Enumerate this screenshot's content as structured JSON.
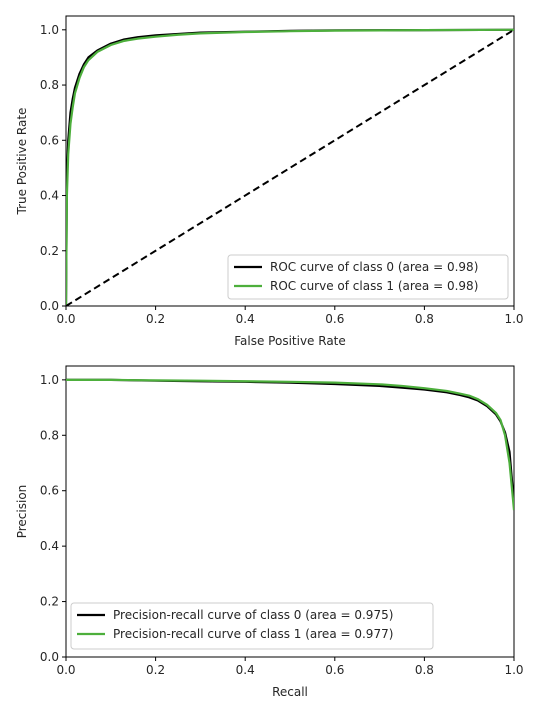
{
  "chart_data": [
    {
      "type": "line",
      "title": "",
      "xlabel": "False Positive Rate",
      "ylabel": "True Positive Rate",
      "xlim": [
        0,
        1
      ],
      "ylim": [
        0,
        1.05
      ],
      "xticks": [
        "0.0",
        "0.2",
        "0.4",
        "0.6",
        "0.8",
        "1.0"
      ],
      "yticks": [
        "0.0",
        "0.2",
        "0.4",
        "0.6",
        "0.8",
        "1.0"
      ],
      "grid": false,
      "legend_position": "lower-right",
      "series": [
        {
          "name": "ROC curve of class 0 (area = 0.98)",
          "color": "#000000",
          "x": [
            0,
            0.002,
            0.005,
            0.01,
            0.015,
            0.02,
            0.03,
            0.04,
            0.05,
            0.07,
            0.1,
            0.13,
            0.16,
            0.2,
            0.25,
            0.3,
            0.4,
            0.5,
            0.6,
            0.8,
            1.0
          ],
          "y": [
            0,
            0.45,
            0.6,
            0.7,
            0.75,
            0.79,
            0.84,
            0.875,
            0.9,
            0.925,
            0.95,
            0.965,
            0.973,
            0.98,
            0.985,
            0.99,
            0.993,
            0.996,
            0.998,
            0.999,
            1.0
          ]
        },
        {
          "name": "ROC curve of class 1 (area = 0.98)",
          "color": "#4daf3c",
          "x": [
            0,
            0.002,
            0.005,
            0.01,
            0.015,
            0.02,
            0.03,
            0.04,
            0.05,
            0.07,
            0.1,
            0.13,
            0.16,
            0.2,
            0.25,
            0.3,
            0.4,
            0.5,
            0.6,
            0.8,
            1.0
          ],
          "y": [
            0,
            0.4,
            0.55,
            0.66,
            0.72,
            0.77,
            0.825,
            0.865,
            0.89,
            0.92,
            0.945,
            0.96,
            0.968,
            0.975,
            0.982,
            0.987,
            0.992,
            0.995,
            0.997,
            0.999,
            1.0
          ]
        },
        {
          "name": "",
          "color": "#000000",
          "dashed": true,
          "x": [
            0,
            1
          ],
          "y": [
            0,
            1
          ]
        }
      ]
    },
    {
      "type": "line",
      "title": "",
      "xlabel": "Recall",
      "ylabel": "Precision",
      "xlim": [
        0,
        1
      ],
      "ylim": [
        0,
        1.05
      ],
      "xticks": [
        "0.0",
        "0.2",
        "0.4",
        "0.6",
        "0.8",
        "1.0"
      ],
      "yticks": [
        "0.0",
        "0.2",
        "0.4",
        "0.6",
        "0.8",
        "1.0"
      ],
      "grid": false,
      "legend_position": "lower-left",
      "series": [
        {
          "name": "Precision-recall curve of class 0 (area = 0.975)",
          "color": "#000000",
          "x": [
            0,
            0.1,
            0.2,
            0.3,
            0.4,
            0.5,
            0.6,
            0.7,
            0.75,
            0.8,
            0.85,
            0.88,
            0.9,
            0.92,
            0.94,
            0.96,
            0.97,
            0.98,
            0.99,
            1.0
          ],
          "y": [
            1.0,
            1.0,
            0.997,
            0.995,
            0.993,
            0.99,
            0.985,
            0.978,
            0.972,
            0.965,
            0.955,
            0.945,
            0.937,
            0.925,
            0.905,
            0.875,
            0.85,
            0.81,
            0.74,
            0.55
          ]
        },
        {
          "name": "Precision-recall curve of class 1 (area = 0.977)",
          "color": "#4daf3c",
          "x": [
            0,
            0.1,
            0.2,
            0.3,
            0.4,
            0.5,
            0.6,
            0.7,
            0.75,
            0.8,
            0.85,
            0.88,
            0.9,
            0.92,
            0.94,
            0.96,
            0.97,
            0.98,
            0.99,
            1.0
          ],
          "y": [
            1.0,
            1.0,
            0.998,
            0.997,
            0.995,
            0.993,
            0.99,
            0.984,
            0.978,
            0.97,
            0.96,
            0.95,
            0.943,
            0.93,
            0.91,
            0.88,
            0.855,
            0.8,
            0.7,
            0.53
          ]
        }
      ]
    }
  ]
}
